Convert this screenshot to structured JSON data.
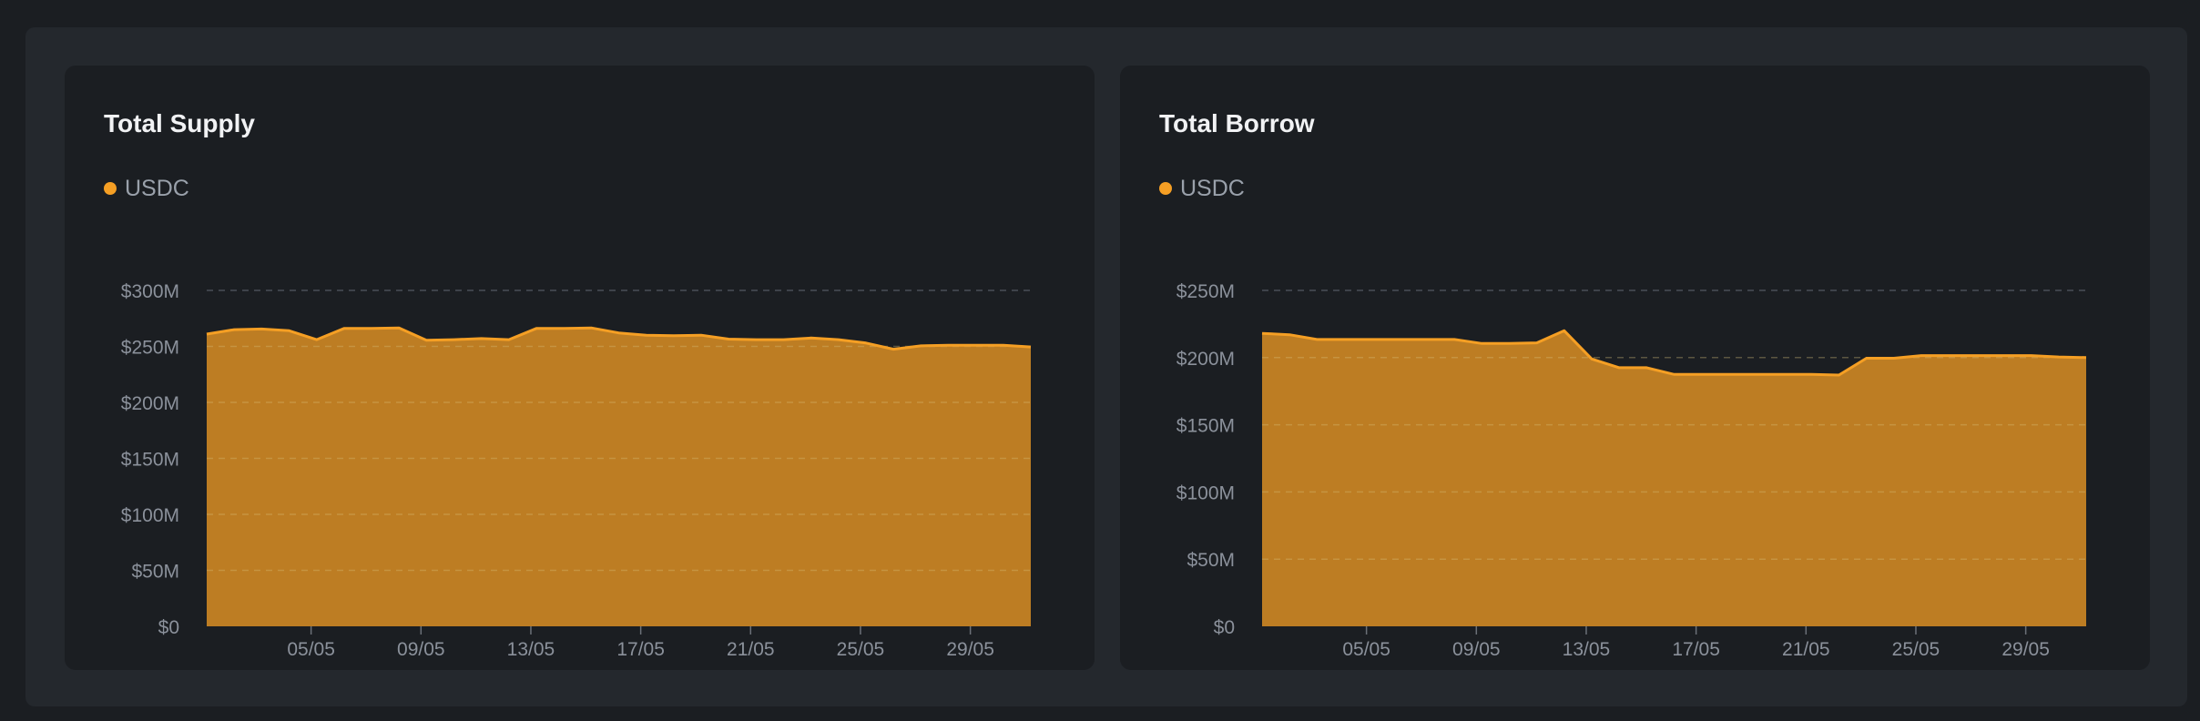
{
  "theme": {
    "accent": "#f59f24",
    "grid": "#4a4f57",
    "text": "#8b919b"
  },
  "chart_data": [
    {
      "type": "area",
      "title": "Total Supply",
      "legend": [
        {
          "label": "USDC",
          "color": "#f59f24"
        }
      ],
      "series": [
        {
          "name": "USDC",
          "values": [
            261,
            265,
            265.5,
            264,
            256,
            266,
            266,
            266.5,
            255.5,
            256,
            257,
            256,
            266,
            266,
            266.5,
            262,
            260,
            259.5,
            260,
            256.5,
            256,
            256,
            257.5,
            256,
            253,
            247.5,
            250.5,
            251,
            251,
            251,
            249.5
          ]
        }
      ],
      "x_tick_labels": [
        "05/05",
        "09/05",
        "13/05",
        "17/05",
        "21/05",
        "25/05",
        "29/05"
      ],
      "x_tick_indices": [
        3.8,
        7.8,
        11.8,
        15.8,
        19.8,
        23.8,
        27.8
      ],
      "y_ticks": [
        0,
        50,
        100,
        150,
        200,
        250,
        300
      ],
      "y_tick_labels": [
        "$0",
        "$50M",
        "$100M",
        "$150M",
        "$200M",
        "$250M",
        "$300M"
      ],
      "ylim": [
        0,
        300
      ]
    },
    {
      "type": "area",
      "title": "Total Borrow",
      "legend": [
        {
          "label": "USDC",
          "color": "#f59f24"
        }
      ],
      "series": [
        {
          "name": "USDC",
          "values": [
            218,
            217,
            213.5,
            213.5,
            213.5,
            213.5,
            213.5,
            213.5,
            210.5,
            210.5,
            211,
            220,
            199,
            192.5,
            192.5,
            187.5,
            187.5,
            187.5,
            187.5,
            187.5,
            187.5,
            187,
            199.5,
            199.5,
            201.5,
            201.5,
            201.5,
            201.5,
            201.5,
            200.5,
            200
          ]
        }
      ],
      "x_tick_labels": [
        "05/05",
        "09/05",
        "13/05",
        "17/05",
        "21/05",
        "25/05",
        "29/05"
      ],
      "x_tick_indices": [
        3.8,
        7.8,
        11.8,
        15.8,
        19.8,
        23.8,
        27.8
      ],
      "y_ticks": [
        0,
        50,
        100,
        150,
        200,
        250
      ],
      "y_tick_labels": [
        "$0",
        "$50M",
        "$100M",
        "$150M",
        "$200M",
        "$250M"
      ],
      "ylim": [
        0,
        250
      ]
    }
  ]
}
